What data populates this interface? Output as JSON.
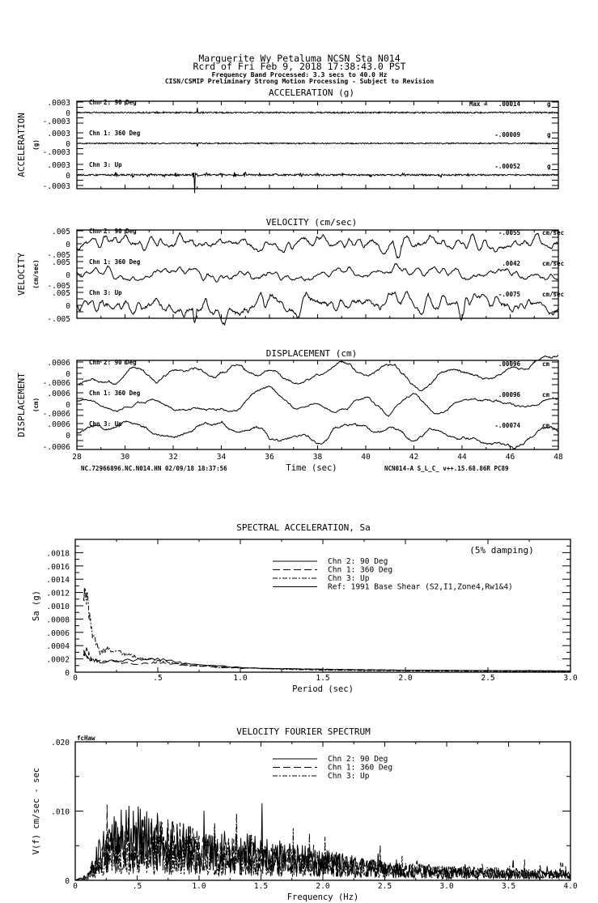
{
  "header": {
    "line1": "Marguerite Wy Petaluma     NCSN Sta N014",
    "line2": "Rcrd of Fri Feb  9, 2018 17:38:43.0 PST",
    "band": "Frequency Band Processed: 3.3 secs to 40.0 Hz",
    "disclaimer": "CISN/CSMIP Preliminary Strong Motion Processing - Subject to Revision"
  },
  "chart_data": [
    {
      "type": "line",
      "title": "ACCELERATION (g)",
      "ylabel": "ACCELERATION",
      "yunit": "(g)",
      "ytick_labels": [
        ".0003",
        "0",
        "-.0003"
      ],
      "ylim": [
        -0.0003,
        0.0003
      ],
      "max_prefix": "Max =",
      "channels": [
        {
          "label": "Chn 2: 90 Deg",
          "peak": 0.00014,
          "peak_label": ".00014",
          "unit": "g"
        },
        {
          "label": "Chn 1: 360 Deg",
          "peak": -9e-05,
          "peak_label": "-.00009",
          "unit": "g"
        },
        {
          "label": "Chn 3: Up",
          "peak": -0.00052,
          "peak_label": "-.00052",
          "unit": "g"
        }
      ]
    },
    {
      "type": "line",
      "title": "VELOCITY (cm/sec)",
      "ylabel": "VELOCITY",
      "yunit": "(cm/sec)",
      "ytick_labels": [
        ".005",
        "0",
        "-.005"
      ],
      "ylim": [
        -0.005,
        0.005
      ],
      "channels": [
        {
          "label": "Chn 2: 90 Deg",
          "peak": -0.0055,
          "peak_label": "-.0055",
          "unit": "cm/sec"
        },
        {
          "label": "Chn 1: 360 Deg",
          "peak": 0.0042,
          "peak_label": ".0042",
          "unit": "cm/sec"
        },
        {
          "label": "Chn 3: Up",
          "peak": -0.0075,
          "peak_label": "-.0075",
          "unit": "cm/sec"
        }
      ]
    },
    {
      "type": "line",
      "title": "DISPLACEMENT (cm)",
      "ylabel": "DISPLACEMENT",
      "yunit": "(cm)",
      "ytick_labels": [
        ".0006",
        "0",
        "-.0006"
      ],
      "ylim": [
        -0.0006,
        0.0006
      ],
      "channels": [
        {
          "label": "Chn 2: 90 Deg",
          "peak": 0.00096,
          "peak_label": ".00096",
          "unit": "cm"
        },
        {
          "label": "Chn 1: 360 Deg",
          "peak": 0.00096,
          "peak_label": ".00096",
          "unit": "cm"
        },
        {
          "label": "Chn 3: Up",
          "peak": -0.00074,
          "peak_label": "-.00074",
          "unit": "cm"
        }
      ],
      "xlabel": "Time (sec)",
      "xlim": [
        28,
        48
      ],
      "xtick_labels": [
        "28",
        "30",
        "32",
        "34",
        "36",
        "38",
        "40",
        "42",
        "44",
        "46",
        "48"
      ],
      "footer_left": "NC.72966896.NC.N014.HN 02/09/18 18:37:56",
      "footer_right": "NCN014-A  S_L_C_  v++.15.68.86R PC89"
    },
    {
      "type": "line",
      "title": "SPECTRAL ACCELERATION, Sa",
      "note": "(5% damping)",
      "xlabel": "Period (sec)",
      "ylabel": "Sa (g)",
      "xlim": [
        0,
        3.0
      ],
      "ylim": [
        0,
        0.002
      ],
      "xtick_labels": [
        "0",
        ".5",
        "1.0",
        "1.5",
        "2.0",
        "2.5",
        "3.0"
      ],
      "ytick_labels": [
        "0",
        ".0002",
        ".0004",
        ".0006",
        ".0008",
        ".0010",
        ".0012",
        ".0014",
        ".0016",
        ".0018"
      ],
      "legend": [
        "Chn 2: 90 Deg",
        "Chn 1: 360 Deg",
        "Chn 3: Up",
        "Ref: 1991 Base Shear (S2,I1,Zone4,Rw1&4)"
      ],
      "series": [
        {
          "name": "Chn 2: 90 Deg",
          "x": [
            0.05,
            0.08,
            0.15,
            0.3,
            0.5,
            0.7,
            1.0,
            1.5,
            2.0,
            3.0
          ],
          "y": [
            0.0003,
            0.0002,
            0.00015,
            0.00018,
            0.0002,
            0.00012,
            7e-05,
            4e-05,
            3e-05,
            2e-05
          ]
        },
        {
          "name": "Chn 1: 360 Deg",
          "x": [
            0.05,
            0.07,
            0.1,
            0.2,
            0.4,
            0.5,
            0.7,
            1.0,
            2.0,
            3.0
          ],
          "y": [
            0.00025,
            0.00035,
            0.00018,
            0.00017,
            0.00012,
            0.00015,
            0.0001,
            6e-05,
            3e-05,
            2e-05
          ]
        },
        {
          "name": "Chn 3: Up",
          "x": [
            0.05,
            0.07,
            0.1,
            0.15,
            0.2,
            0.3,
            0.4,
            0.5,
            0.7,
            1.0,
            1.5,
            2.0,
            3.0
          ],
          "y": [
            0.0012,
            0.00115,
            0.0006,
            0.0003,
            0.00035,
            0.00028,
            0.0002,
            0.00018,
            0.0001,
            6e-05,
            3e-05,
            2e-05,
            1e-05
          ]
        }
      ]
    },
    {
      "type": "line",
      "title": "VELOCITY FOURIER SPECTRUM",
      "corner_label": "fcHaw",
      "xlabel": "Frequency (Hz)",
      "ylabel": "V(f)   cm/sec - sec",
      "xlim": [
        0,
        4.0
      ],
      "ylim": [
        0,
        0.02
      ],
      "xtick_labels": [
        "0",
        ".5",
        "1.0",
        "1.5",
        "2.0",
        "2.5",
        "3.0",
        "3.5",
        "4.0"
      ],
      "ytick_labels": [
        "0",
        ".010",
        ".020"
      ],
      "legend": [
        "Chn 2: 90 Deg",
        "Chn 1: 360 Deg",
        "Chn 3: Up"
      ],
      "series": [
        {
          "name": "Chn 2: 90 Deg",
          "x": [
            0,
            0.1,
            0.2,
            0.4,
            0.6,
            0.8,
            1.0,
            1.3,
            1.5,
            2.0,
            2.5,
            3.0,
            3.5,
            4.0
          ],
          "y": [
            0,
            0.0005,
            0.004,
            0.006,
            0.006,
            0.005,
            0.004,
            0.004,
            0.0035,
            0.0025,
            0.0015,
            0.001,
            0.0008,
            0.0008
          ]
        },
        {
          "name": "Chn 1: 360 Deg",
          "x": [
            0,
            0.1,
            0.2,
            0.4,
            0.6,
            0.8,
            1.0,
            1.3,
            1.5,
            2.0,
            2.5,
            3.0,
            3.5,
            4.0
          ],
          "y": [
            0,
            0.0005,
            0.003,
            0.005,
            0.005,
            0.005,
            0.004,
            0.0035,
            0.003,
            0.0025,
            0.0015,
            0.0012,
            0.001,
            0.0008
          ]
        },
        {
          "name": "Chn 3: Up",
          "x": [
            0,
            0.1,
            0.2,
            0.4,
            0.6,
            0.8,
            1.0,
            1.3,
            1.5,
            2.0,
            2.5,
            3.0,
            3.5,
            4.0
          ],
          "y": [
            0,
            0.0003,
            0.002,
            0.004,
            0.004,
            0.004,
            0.0035,
            0.003,
            0.003,
            0.002,
            0.0015,
            0.0012,
            0.001,
            0.0008
          ]
        }
      ]
    }
  ]
}
